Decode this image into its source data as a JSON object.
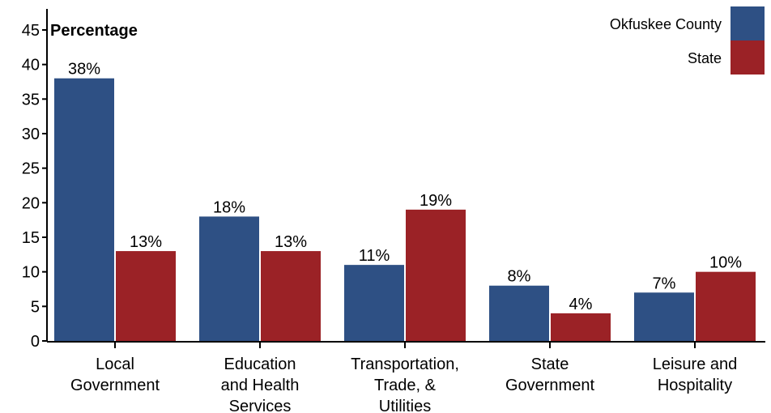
{
  "chart_data": {
    "type": "bar",
    "ylabel": "Percentage",
    "ylim": [
      0,
      45
    ],
    "yticks": [
      0,
      5,
      10,
      15,
      20,
      25,
      30,
      35,
      40,
      45
    ],
    "categories": [
      [
        "Local",
        "Government"
      ],
      [
        "Education",
        "and Health",
        "Services"
      ],
      [
        "Transportation,",
        "Trade, &",
        "Utilities"
      ],
      [
        "State",
        "Government"
      ],
      [
        "Leisure and",
        "Hospitality"
      ]
    ],
    "series": [
      {
        "name": "Okfuskee County",
        "color": "#2e5084",
        "values": [
          38,
          18,
          11,
          8,
          7
        ],
        "labels": [
          "38%",
          "18%",
          "11%",
          "8%",
          "7%"
        ]
      },
      {
        "name": "State",
        "color": "#9b2226",
        "values": [
          13,
          13,
          19,
          4,
          10
        ],
        "labels": [
          "13%",
          "13%",
          "19%",
          "4%",
          "10%"
        ]
      }
    ],
    "legend": "top-right",
    "grid": false
  }
}
